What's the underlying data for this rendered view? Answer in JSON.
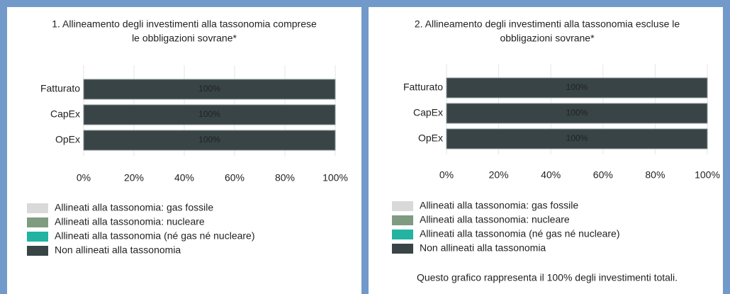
{
  "chart_data": [
    {
      "type": "bar",
      "orientation": "horizontal",
      "title": [
        "1. Allineamento degli investimenti alla tassonomia comprese",
        "le obbligazioni sovrane*"
      ],
      "categories": [
        "Fatturato",
        "CapEx",
        "OpEx"
      ],
      "series": [
        {
          "name": "Allineati alla tassonomia: gas fossile",
          "color": "#d9d9d9",
          "values": [
            0,
            0,
            0
          ]
        },
        {
          "name": "Allineati alla tassonomia: nucleare",
          "color": "#7f9b80",
          "values": [
            0,
            0,
            0
          ]
        },
        {
          "name": "Allineati alla tassonomia (né gas né nucleare)",
          "color": "#22b3a1",
          "values": [
            0,
            0,
            0
          ]
        },
        {
          "name": "Non allineati alla tassonomia",
          "color": "#384446",
          "values": [
            100,
            100,
            100
          ],
          "value_labels": [
            "100%",
            "100%",
            "100%"
          ]
        }
      ],
      "xlim": [
        0,
        100
      ],
      "xticks": [
        {
          "value": 0,
          "label": "0%"
        },
        {
          "value": 20,
          "label": "20%"
        },
        {
          "value": 40,
          "label": "40%"
        },
        {
          "value": 60,
          "label": "60%"
        },
        {
          "value": 80,
          "label": "80%"
        },
        {
          "value": 100,
          "label": "100%"
        }
      ],
      "grid": true
    },
    {
      "type": "bar",
      "orientation": "horizontal",
      "title": [
        "2. Allineamento degli investimenti alla tassonomia escluse le",
        "obbligazioni sovrane*"
      ],
      "categories": [
        "Fatturato",
        "CapEx",
        "OpEx"
      ],
      "series": [
        {
          "name": "Allineati alla tassonomia: gas fossile",
          "color": "#d9d9d9",
          "values": [
            0,
            0,
            0
          ]
        },
        {
          "name": "Allineati alla tassonomia: nucleare",
          "color": "#7f9b80",
          "values": [
            0,
            0,
            0
          ]
        },
        {
          "name": "Allineati alla tassonomia (né gas né nucleare)",
          "color": "#22b3a1",
          "values": [
            0,
            0,
            0
          ]
        },
        {
          "name": "Non allineati alla tassonomia",
          "color": "#384446",
          "values": [
            100,
            100,
            100
          ],
          "value_labels": [
            "100%",
            "100%",
            "100%"
          ]
        }
      ],
      "xlim": [
        0,
        100
      ],
      "xticks": [
        {
          "value": 0,
          "label": "0%"
        },
        {
          "value": 20,
          "label": "20%"
        },
        {
          "value": 40,
          "label": "40%"
        },
        {
          "value": 60,
          "label": "60%"
        },
        {
          "value": 80,
          "label": "80%"
        },
        {
          "value": 100,
          "label": "100%"
        }
      ],
      "grid": true,
      "note": "Questo grafico rappresenta il 100% degli investimenti totali."
    }
  ]
}
